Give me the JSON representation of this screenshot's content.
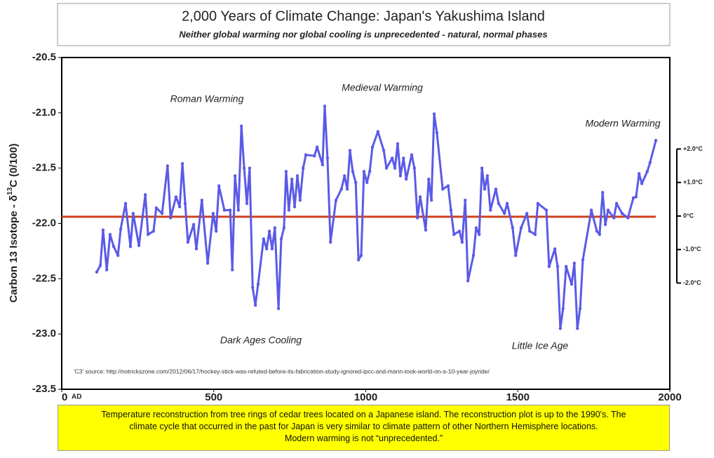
{
  "chart_data": {
    "type": "line",
    "title": "2,000 Years of Climate Change: Japan's Yakushima Island",
    "subtitle": "Neither global warming nor global cooling is unprecedented - natural, normal phases",
    "ylabel": {
      "text": "Carbon 13 Isotope - δ",
      "sup": "13",
      "after": "C (0/100)"
    },
    "x_unit": "AD",
    "source": "'C3' source: http://notrickszone.com/2012/06/17/hockey-stick-was-refuted-before-its-fabrication-study-ignored-ipcc-and-mann-took-world-on-a-10-year-joyride/",
    "annotations": [
      "Roman Warming",
      "Medieval Warming",
      "Modern Warming",
      "Dark Ages Cooling",
      "Little Ice Age"
    ],
    "note": [
      "Temperature reconstruction from tree rings of cedar trees located on a Japanese island. The reconstruction plot is up to the 1990's. The",
      "climate cycle that occurred in the past for Japan is very similar to climate pattern of other Northern Hemisphere locations.",
      "Modern warming is not “unprecedented.”"
    ],
    "xlim": [
      0,
      2000
    ],
    "xticks": [
      0,
      500,
      1000,
      1500,
      2000
    ],
    "ylim": [
      -23.5,
      -20.5
    ],
    "yticks": [
      {
        "value": -23.5,
        "label": "-23.5"
      },
      {
        "value": -23,
        "label": "-23.0"
      },
      {
        "value": -22.5,
        "label": "-22.5"
      },
      {
        "value": -22,
        "label": "-22.0"
      },
      {
        "value": -21.5,
        "label": "-21.5"
      },
      {
        "value": -21,
        "label": "-21.0"
      },
      {
        "value": -20.5,
        "label": "-20.5"
      }
    ],
    "y2lim": [
      -5.17,
      4.73
    ],
    "y2ticks": [
      {
        "value": 2,
        "label": "+2.0°C"
      },
      {
        "value": 1,
        "label": "+1.0°C"
      },
      {
        "value": 0,
        "label": "0°C"
      },
      {
        "value": -1,
        "label": "-1.0°C"
      },
      {
        "value": -2,
        "label": "-2.0°C"
      }
    ],
    "reference_line": {
      "value": -21.94,
      "color": "#d2401c"
    },
    "series": [
      {
        "color": "#5a5ae8",
        "x": [
          115,
          127,
          136,
          148,
          159,
          171,
          185,
          194,
          210,
          226,
          235,
          254,
          275,
          284,
          302,
          311,
          330,
          348,
          358,
          376,
          388,
          397,
          406,
          415,
          434,
          443,
          461,
          480,
          498,
          508,
          517,
          535,
          554,
          561,
          570,
          581,
          591,
          600,
          609,
          618,
          628,
          637,
          646,
          664,
          674,
          683,
          692,
          701,
          713,
          722,
          731,
          738,
          747,
          757,
          766,
          775,
          784,
          794,
          803,
          831,
          840,
          858,
          865,
          874,
          884,
          902,
          920,
          930,
          939,
          948,
          957,
          967,
          976,
          985,
          994,
          1004,
          1013,
          1022,
          1040,
          1059,
          1068,
          1087,
          1096,
          1105,
          1114,
          1124,
          1133,
          1151,
          1160,
          1170,
          1179,
          1197,
          1207,
          1216,
          1225,
          1234,
          1253,
          1271,
          1280,
          1290,
          1308,
          1317,
          1327,
          1336,
          1354,
          1363,
          1373,
          1382,
          1391,
          1400,
          1410,
          1428,
          1437,
          1456,
          1465,
          1483,
          1493,
          1511,
          1530,
          1539,
          1557,
          1566,
          1594,
          1603,
          1622,
          1631,
          1640,
          1649,
          1659,
          1677,
          1686,
          1696,
          1705,
          1714,
          1742,
          1760,
          1769,
          1779,
          1788,
          1797,
          1816,
          1825,
          1843,
          1862,
          1880,
          1889,
          1899,
          1908,
          1926,
          1935,
          1954
        ],
        "values": [
          -22.44,
          -22.38,
          -22.06,
          -22.42,
          -22.1,
          -22.21,
          -22.29,
          -22.05,
          -21.82,
          -22.21,
          -21.91,
          -22.2,
          -21.74,
          -22.1,
          -22.07,
          -21.86,
          -21.91,
          -21.48,
          -21.95,
          -21.76,
          -21.85,
          -21.46,
          -21.82,
          -22.17,
          -22.01,
          -22.23,
          -21.79,
          -22.36,
          -21.91,
          -22.07,
          -21.66,
          -21.88,
          -21.88,
          -22.42,
          -21.57,
          -21.88,
          -21.12,
          -21.5,
          -21.82,
          -21.5,
          -22.58,
          -22.74,
          -22.55,
          -22.14,
          -22.23,
          -22.07,
          -22.23,
          -22.04,
          -22.77,
          -22.14,
          -22.04,
          -21.53,
          -21.88,
          -21.6,
          -21.85,
          -21.57,
          -21.79,
          -21.5,
          -21.38,
          -21.39,
          -21.31,
          -21.47,
          -20.94,
          -21.41,
          -22.17,
          -21.79,
          -21.69,
          -21.57,
          -21.69,
          -21.34,
          -21.53,
          -21.63,
          -22.33,
          -22.29,
          -21.53,
          -21.63,
          -21.53,
          -21.31,
          -21.17,
          -21.34,
          -21.5,
          -21.41,
          -21.5,
          -21.28,
          -21.57,
          -21.41,
          -21.6,
          -21.38,
          -21.5,
          -21.95,
          -21.76,
          -22.06,
          -21.6,
          -21.79,
          -21.01,
          -21.18,
          -21.69,
          -21.66,
          -21.88,
          -22.1,
          -22.07,
          -22.17,
          -21.79,
          -22.52,
          -22.29,
          -22.04,
          -22.1,
          -21.5,
          -21.69,
          -21.57,
          -21.88,
          -21.69,
          -21.82,
          -21.91,
          -21.82,
          -22.04,
          -22.29,
          -22.04,
          -21.91,
          -22.07,
          -22.1,
          -21.82,
          -21.88,
          -22.39,
          -22.23,
          -22.39,
          -22.95,
          -22.77,
          -22.39,
          -22.55,
          -22.36,
          -22.95,
          -22.77,
          -22.33,
          -21.88,
          -22.07,
          -22.1,
          -21.72,
          -22.01,
          -21.88,
          -21.95,
          -21.82,
          -21.91,
          -21.95,
          -21.77,
          -21.76,
          -21.55,
          -21.64,
          -21.53,
          -21.45,
          -21.25
        ]
      }
    ]
  }
}
